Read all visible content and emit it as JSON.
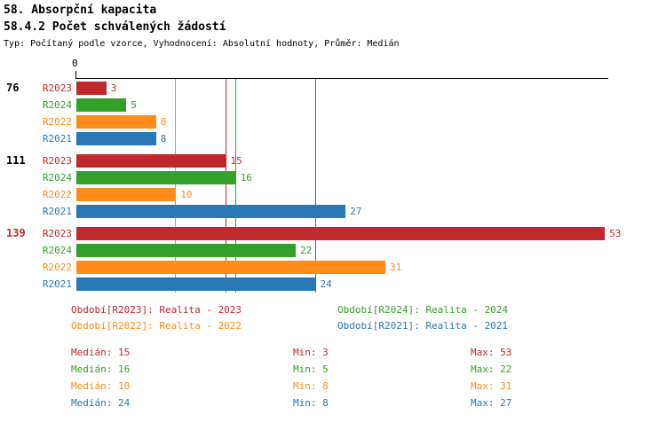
{
  "header": {
    "title": "58. Absorpční kapacita",
    "subtitle": "58.4.2 Počet schválených žádostí",
    "meta": "Typ: Počítaný podle vzorce, Vyhodnocení: Absolutní hodnoty, Průměr: Medián"
  },
  "chart_data": {
    "type": "bar",
    "orientation": "horizontal",
    "title": "58.4.2 Počet schválených žádostí",
    "x_axis": {
      "origin_label": "0",
      "min": 0,
      "max_extent": 53,
      "gridlines": "median-reference-lines"
    },
    "series_order": [
      "R2023",
      "R2024",
      "R2022",
      "R2021"
    ],
    "series_colors": {
      "R2023": "#c0282d",
      "R2024": "#33a02c",
      "R2022": "#ff8c1a",
      "R2021": "#2878b5"
    },
    "groups": [
      {
        "label": "76",
        "label_color": "#000000",
        "values": {
          "R2023": 3,
          "R2024": 5,
          "R2022": 8,
          "R2021": 8
        }
      },
      {
        "label": "111",
        "label_color": "#000000",
        "values": {
          "R2023": 15,
          "R2024": 16,
          "R2022": 10,
          "R2021": 27
        }
      },
      {
        "label": "139",
        "label_color": "#c0282d",
        "values": {
          "R2023": 53,
          "R2024": 22,
          "R2022": 31,
          "R2021": 24
        }
      }
    ],
    "stats": [
      {
        "series": "R2023",
        "median": 15,
        "min": 3,
        "max": 53
      },
      {
        "series": "R2024",
        "median": 16,
        "min": 5,
        "max": 22
      },
      {
        "series": "R2022",
        "median": 10,
        "min": 8,
        "max": 31
      },
      {
        "series": "R2021",
        "median": 24,
        "min": 8,
        "max": 27
      }
    ],
    "legend": [
      {
        "series": "R2023",
        "label": "Období[R2023]: Realita - 2023"
      },
      {
        "series": "R2024",
        "label": "Období[R2024]: Realita - 2024"
      },
      {
        "series": "R2022",
        "label": "Období[R2022]: Realita - 2022"
      },
      {
        "series": "R2021",
        "label": "Období[R2021]: Realita - 2021"
      }
    ],
    "stats_labels": {
      "median": "Medián",
      "min": "Min",
      "max": "Max"
    },
    "legend_position": "bottom"
  }
}
